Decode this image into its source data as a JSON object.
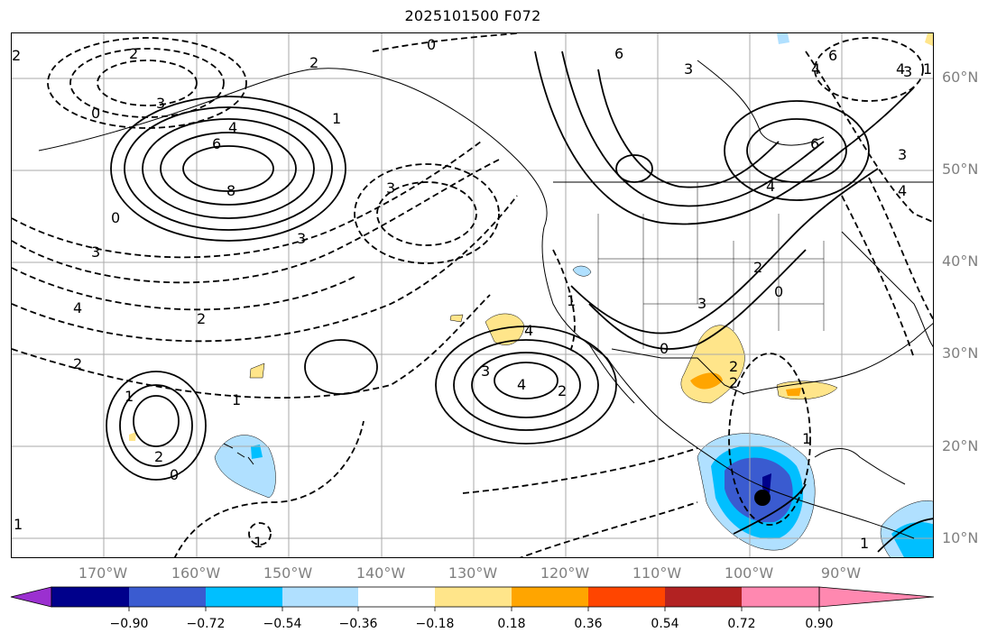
{
  "title": "2025101500 F072",
  "lat_labels": [
    "60°N",
    "50°N",
    "40°N",
    "30°N",
    "20°N",
    "10°N"
  ],
  "lon_labels": [
    "170°W",
    "160°W",
    "150°W",
    "140°W",
    "130°W",
    "120°W",
    "110°W",
    "100°W",
    "90°W"
  ],
  "colorbar": {
    "ticks": [
      "−0.90",
      "−0.72",
      "−0.54",
      "−0.36",
      "−0.18",
      "0.18",
      "0.36",
      "0.54",
      "0.72",
      "0.90"
    ],
    "colors": [
      "#9b30d0",
      "#00008b",
      "#3a5bd0",
      "#00bfff",
      "#b0e0ff",
      "#ffffff",
      "#ffe58a",
      "#ffa500",
      "#ff4500",
      "#b22222",
      "#ff88b0"
    ]
  },
  "contour_labels": {
    "positive": [
      "8",
      "6",
      "4",
      "3",
      "2",
      "1",
      "6",
      "3",
      "4",
      "2",
      "1",
      "2",
      "2",
      "3",
      "1",
      "1",
      "0",
      "6",
      "4",
      "3",
      "3",
      "0"
    ],
    "negative": [
      "2",
      "3",
      "4",
      "3",
      "2",
      "1",
      "0",
      "0",
      "2",
      "3",
      "4",
      "1",
      "2",
      "0",
      "1",
      "1",
      "4",
      "4",
      "2",
      "0",
      "4",
      "2",
      "3",
      "6",
      "1"
    ]
  },
  "marker": "storm-center-dot"
}
